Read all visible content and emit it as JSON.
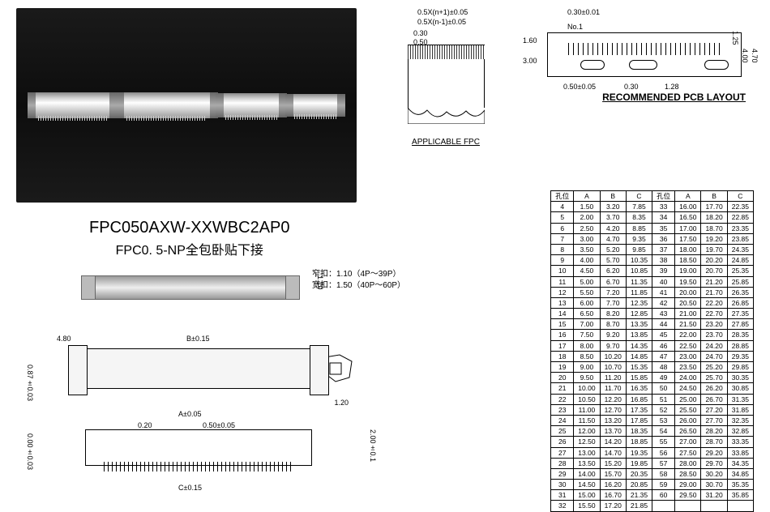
{
  "product": {
    "part_number": "FPC050AXW-XXWBC2AP0",
    "description": "FPC0. 5-NP全包卧贴下接"
  },
  "photo": {
    "background_color": "#0d0d0d",
    "connectors": [
      {
        "width": 95,
        "height": 32
      },
      {
        "width": 110,
        "height": 32
      },
      {
        "width": 72,
        "height": 30
      },
      {
        "width": 58,
        "height": 28
      }
    ]
  },
  "notes": {
    "narrow": "窄扣：1.10（4P～39P）",
    "wide": "宽扣：1.50（40P～60P）"
  },
  "dimensions": {
    "fpc_top1": "0.5X(n+1)±0.05",
    "fpc_top2": "0.5X(n-1)±0.05",
    "fpc_pad_w": "0.30",
    "fpc_pitch": "0.50",
    "fpc_label": "APPLICABLE FPC",
    "pcb_tol": "0.30±0.01",
    "pcb_no1": "No.1",
    "pcb_h1": "1.60",
    "pcb_h2": "3.00",
    "pcb_p1": "0.50±0.05",
    "pcb_p2": "0.30",
    "pcb_p3": "1.28",
    "pcb_r1": "1.25",
    "pcb_r2": "4.00",
    "pcb_r3": "4.70",
    "pcb_label": "RECOMMENDED PCB LAYOUT",
    "side_w": "4.80",
    "side_b": "B±0.15",
    "side_h": "0.87±0.03",
    "side_h2": "0.00±0.03",
    "side_h3": "2.00±0.1",
    "side_clip": "1.20",
    "top3d_h": "1.10",
    "front_a": "A±0.05",
    "front_p1": "0.20",
    "front_p2": "0.50±0.05",
    "front_c": "C±0.15"
  },
  "table": {
    "headers": [
      "孔位",
      "A",
      "B",
      "C",
      "孔位",
      "A",
      "B",
      "C"
    ],
    "rows": [
      [
        "4",
        "1.50",
        "3.20",
        "7.85",
        "33",
        "16.00",
        "17.70",
        "22.35"
      ],
      [
        "5",
        "2.00",
        "3.70",
        "8.35",
        "34",
        "16.50",
        "18.20",
        "22.85"
      ],
      [
        "6",
        "2.50",
        "4.20",
        "8.85",
        "35",
        "17.00",
        "18.70",
        "23.35"
      ],
      [
        "7",
        "3.00",
        "4.70",
        "9.35",
        "36",
        "17.50",
        "19.20",
        "23.85"
      ],
      [
        "8",
        "3.50",
        "5.20",
        "9.85",
        "37",
        "18.00",
        "19.70",
        "24.35"
      ],
      [
        "9",
        "4.00",
        "5.70",
        "10.35",
        "38",
        "18.50",
        "20.20",
        "24.85"
      ],
      [
        "10",
        "4.50",
        "6.20",
        "10.85",
        "39",
        "19.00",
        "20.70",
        "25.35"
      ],
      [
        "11",
        "5.00",
        "6.70",
        "11.35",
        "40",
        "19.50",
        "21.20",
        "25.85"
      ],
      [
        "12",
        "5.50",
        "7.20",
        "11.85",
        "41",
        "20.00",
        "21.70",
        "26.35"
      ],
      [
        "13",
        "6.00",
        "7.70",
        "12.35",
        "42",
        "20.50",
        "22.20",
        "26.85"
      ],
      [
        "14",
        "6.50",
        "8.20",
        "12.85",
        "43",
        "21.00",
        "22.70",
        "27.35"
      ],
      [
        "15",
        "7.00",
        "8.70",
        "13.35",
        "44",
        "21.50",
        "23.20",
        "27.85"
      ],
      [
        "16",
        "7.50",
        "9.20",
        "13.85",
        "45",
        "22.00",
        "23.70",
        "28.35"
      ],
      [
        "17",
        "8.00",
        "9.70",
        "14.35",
        "46",
        "22.50",
        "24.20",
        "28.85"
      ],
      [
        "18",
        "8.50",
        "10.20",
        "14.85",
        "47",
        "23.00",
        "24.70",
        "29.35"
      ],
      [
        "19",
        "9.00",
        "10.70",
        "15.35",
        "48",
        "23.50",
        "25.20",
        "29.85"
      ],
      [
        "20",
        "9.50",
        "11.20",
        "15.85",
        "49",
        "24.00",
        "25.70",
        "30.35"
      ],
      [
        "21",
        "10.00",
        "11.70",
        "16.35",
        "50",
        "24.50",
        "26.20",
        "30.85"
      ],
      [
        "22",
        "10.50",
        "12.20",
        "16.85",
        "51",
        "25.00",
        "26.70",
        "31.35"
      ],
      [
        "23",
        "11.00",
        "12.70",
        "17.35",
        "52",
        "25.50",
        "27.20",
        "31.85"
      ],
      [
        "24",
        "11.50",
        "13.20",
        "17.85",
        "53",
        "26.00",
        "27.70",
        "32.35"
      ],
      [
        "25",
        "12.00",
        "13.70",
        "18.35",
        "54",
        "26.50",
        "28.20",
        "32.85"
      ],
      [
        "26",
        "12.50",
        "14.20",
        "18.85",
        "55",
        "27.00",
        "28.70",
        "33.35"
      ],
      [
        "27",
        "13.00",
        "14.70",
        "19.35",
        "56",
        "27.50",
        "29.20",
        "33.85"
      ],
      [
        "28",
        "13.50",
        "15.20",
        "19.85",
        "57",
        "28.00",
        "29.70",
        "34.35"
      ],
      [
        "29",
        "14.00",
        "15.70",
        "20.35",
        "58",
        "28.50",
        "30.20",
        "34.85"
      ],
      [
        "30",
        "14.50",
        "16.20",
        "20.85",
        "59",
        "29.00",
        "30.70",
        "35.35"
      ],
      [
        "31",
        "15.00",
        "16.70",
        "21.35",
        "60",
        "29.50",
        "31.20",
        "35.85"
      ],
      [
        "32",
        "15.50",
        "17.20",
        "21.85",
        "",
        "",
        "",
        ""
      ]
    ]
  }
}
